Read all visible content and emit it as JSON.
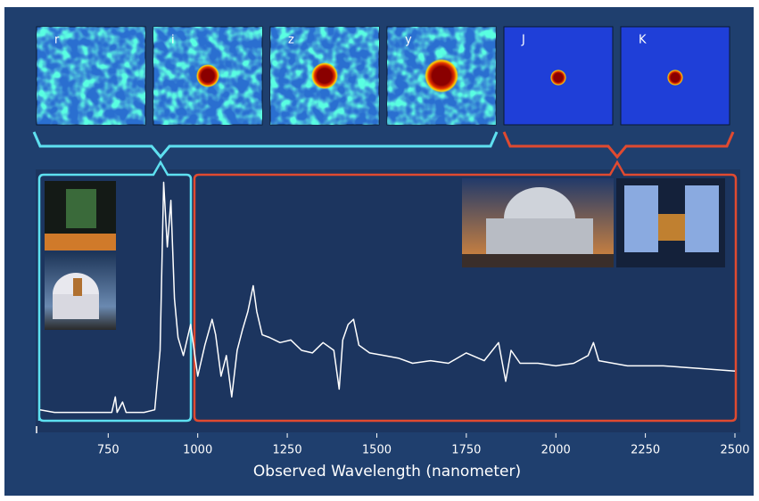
{
  "chart_data": {
    "type": "line",
    "xlabel": "Observed Wavelength (nanometer)",
    "band_labels": [
      "r",
      "i",
      "z",
      "y",
      "J",
      "K"
    ],
    "x": [
      560,
      600,
      650,
      700,
      760,
      770,
      775,
      790,
      800,
      850,
      880,
      895,
      905,
      915,
      925,
      935,
      945,
      960,
      980,
      990,
      1000,
      1020,
      1040,
      1050,
      1065,
      1080,
      1095,
      1110,
      1125,
      1140,
      1155,
      1165,
      1180,
      1200,
      1230,
      1260,
      1290,
      1320,
      1350,
      1380,
      1395,
      1405,
      1420,
      1435,
      1450,
      1480,
      1520,
      1560,
      1600,
      1650,
      1700,
      1750,
      1800,
      1840,
      1860,
      1875,
      1900,
      1950,
      2000,
      2050,
      2090,
      2105,
      2120,
      2200,
      2300,
      2400,
      2500
    ],
    "values": [
      7,
      6,
      6,
      6,
      6,
      12,
      6,
      10,
      6,
      6,
      7,
      30,
      95,
      70,
      88,
      50,
      35,
      28,
      40,
      30,
      20,
      32,
      42,
      36,
      20,
      28,
      12,
      30,
      38,
      45,
      55,
      45,
      36,
      35,
      33,
      34,
      30,
      29,
      33,
      30,
      15,
      34,
      40,
      42,
      32,
      29,
      28,
      27,
      25,
      26,
      25,
      29,
      26,
      33,
      18,
      30,
      25,
      25,
      24,
      25,
      28,
      33,
      26,
      24,
      24,
      23,
      22
    ],
    "color": "#ffffff",
    "xlim": [
      550,
      2500
    ],
    "ylim": [
      0,
      100
    ],
    "xticks": [
      750,
      1000,
      1250,
      1500,
      1750,
      2000,
      2250,
      2500
    ]
  }
}
